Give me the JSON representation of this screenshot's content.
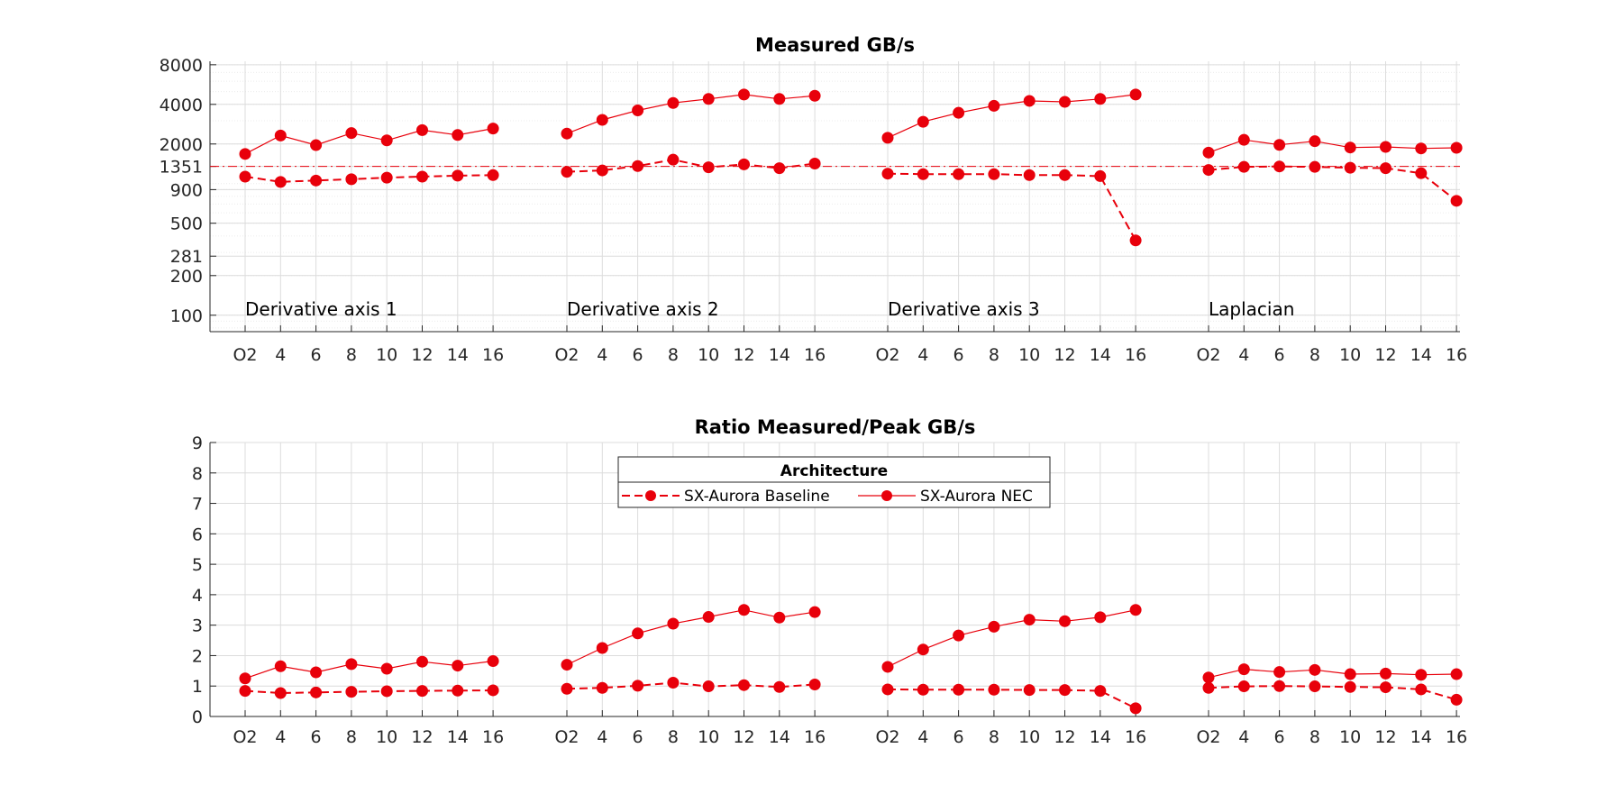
{
  "chart_data": [
    {
      "type": "line",
      "title": "Measured GB/s",
      "y_scale": "log",
      "ylim": [
        75,
        8500
      ],
      "y_ticks": [
        "100",
        "200",
        "281",
        "500",
        "900",
        "1351",
        "2000",
        "4000",
        "8000"
      ],
      "y_tick_values": [
        100,
        200,
        281,
        500,
        900,
        1351,
        2000,
        4000,
        8000
      ],
      "grid": true,
      "minor_grid": true,
      "reference_line": {
        "value": 1351,
        "style": "dash-dot"
      },
      "categories": [
        "O2",
        "4",
        "6",
        "8",
        "10",
        "12",
        "14",
        "16"
      ],
      "groups": [
        {
          "label": "Derivative axis 1",
          "series": [
            {
              "name": "SX-Aurora Baseline",
              "values": [
                1130,
                1030,
                1055,
                1080,
                1110,
                1130,
                1150,
                1160
              ]
            },
            {
              "name": "SX-Aurora NEC",
              "values": [
                1680,
                2320,
                1960,
                2420,
                2130,
                2550,
                2340,
                2620
              ]
            }
          ]
        },
        {
          "label": "Derivative axis 2",
          "series": [
            {
              "name": "SX-Aurora Baseline",
              "values": [
                1230,
                1260,
                1360,
                1520,
                1330,
                1400,
                1310,
                1420
              ]
            },
            {
              "name": "SX-Aurora NEC",
              "values": [
                2400,
                3050,
                3600,
                4100,
                4400,
                4750,
                4400,
                4650
              ]
            }
          ]
        },
        {
          "label": "Derivative axis 3",
          "series": [
            {
              "name": "SX-Aurora Baseline",
              "values": [
                1190,
                1180,
                1180,
                1180,
                1160,
                1160,
                1140,
                370
              ]
            },
            {
              "name": "SX-Aurora NEC",
              "values": [
                2230,
                2950,
                3450,
                3900,
                4250,
                4180,
                4400,
                4750
              ]
            }
          ]
        },
        {
          "label": "Laplacian",
          "series": [
            {
              "name": "SX-Aurora Baseline",
              "values": [
                1270,
                1340,
                1350,
                1340,
                1320,
                1310,
                1200,
                740
              ]
            },
            {
              "name": "SX-Aurora NEC",
              "values": [
                1720,
                2150,
                1970,
                2100,
                1880,
                1900,
                1850,
                1870
              ]
            }
          ]
        }
      ]
    },
    {
      "type": "line",
      "title": "Ratio Measured/Peak GB/s",
      "ylim": [
        0,
        9
      ],
      "y_ticks": [
        "0",
        "1",
        "2",
        "3",
        "4",
        "5",
        "6",
        "7",
        "8",
        "9"
      ],
      "y_tick_values": [
        0,
        1,
        2,
        3,
        4,
        5,
        6,
        7,
        8,
        9
      ],
      "grid": true,
      "legend": {
        "title": "Architecture",
        "placement": "top-center",
        "entries": [
          "SX-Aurora Baseline",
          "SX-Aurora NEC"
        ]
      },
      "categories": [
        "O2",
        "4",
        "6",
        "8",
        "10",
        "12",
        "14",
        "16"
      ],
      "groups": [
        {
          "series": [
            {
              "name": "SX-Aurora Baseline",
              "values": [
                0.84,
                0.77,
                0.79,
                0.81,
                0.83,
                0.84,
                0.85,
                0.86
              ]
            },
            {
              "name": "SX-Aurora NEC",
              "values": [
                1.25,
                1.65,
                1.45,
                1.72,
                1.57,
                1.8,
                1.67,
                1.82
              ]
            }
          ]
        },
        {
          "series": [
            {
              "name": "SX-Aurora Baseline",
              "values": [
                0.91,
                0.94,
                1.01,
                1.11,
                0.99,
                1.03,
                0.97,
                1.05
              ]
            },
            {
              "name": "SX-Aurora NEC",
              "values": [
                1.7,
                2.25,
                2.73,
                3.05,
                3.27,
                3.5,
                3.25,
                3.43
              ]
            }
          ]
        },
        {
          "series": [
            {
              "name": "SX-Aurora Baseline",
              "values": [
                0.89,
                0.88,
                0.88,
                0.88,
                0.87,
                0.87,
                0.84,
                0.27
              ]
            },
            {
              "name": "SX-Aurora NEC",
              "values": [
                1.63,
                2.2,
                2.66,
                2.95,
                3.18,
                3.13,
                3.26,
                3.5
              ]
            }
          ]
        },
        {
          "series": [
            {
              "name": "SX-Aurora Baseline",
              "values": [
                0.94,
                0.99,
                1.0,
                0.99,
                0.97,
                0.96,
                0.89,
                0.55
              ]
            },
            {
              "name": "SX-Aurora NEC",
              "values": [
                1.28,
                1.55,
                1.46,
                1.53,
                1.39,
                1.41,
                1.37,
                1.39
              ]
            }
          ]
        }
      ]
    }
  ],
  "colors": {
    "series": "#e8000b",
    "grid": "#dcdcdc",
    "axis": "#262626"
  }
}
